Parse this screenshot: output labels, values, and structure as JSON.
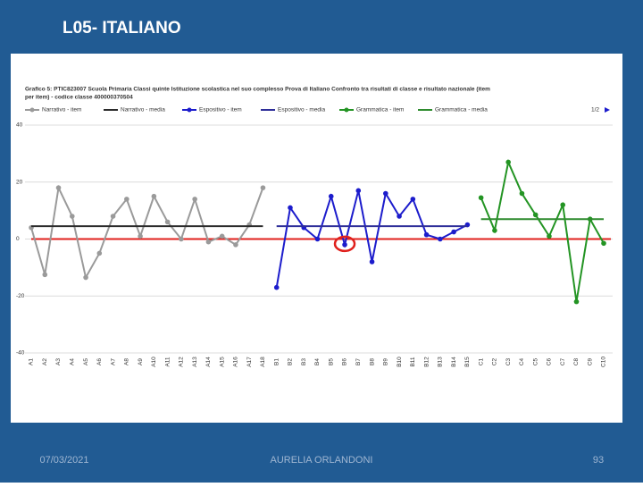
{
  "slide": {
    "title": "L05- ITALIANO",
    "date": "07/03/2021",
    "author": "AURELIA ORLANDONI",
    "page": "93"
  },
  "chart_data": {
    "type": "line",
    "title_lines": [
      "Grafico 5: PTIC823007   Scuola Primaria   Classi quinte   Istituzione scolastica nel suo complesso   Prova di Italiano   Confronto tra risultati di classe e risultato nazionale (item",
      "per item) - codice classe 400000370504"
    ],
    "legend_page": "1/2",
    "categories": [
      "A1",
      "A2",
      "A3",
      "A4",
      "A5",
      "A6",
      "A7",
      "A8",
      "A9",
      "A10",
      "A11",
      "A12",
      "A13",
      "A14",
      "A15",
      "A16",
      "A17",
      "A18",
      "B1",
      "B2",
      "B3",
      "B4",
      "B5",
      "B6",
      "B7",
      "B8",
      "B9",
      "B10",
      "B11",
      "B12",
      "B13",
      "B14",
      "B15",
      "C1",
      "C2",
      "C3",
      "C4",
      "C5",
      "C6",
      "C7",
      "C8",
      "C9",
      "C10"
    ],
    "series": [
      {
        "name": "Narrativo - item",
        "color": "#9a9a9a",
        "values": [
          4,
          -12.5,
          18,
          8,
          -13.5,
          -5,
          8,
          14,
          1,
          15,
          6,
          0,
          14,
          -1,
          1,
          -2,
          5,
          18,
          null,
          null,
          null,
          null,
          null,
          null,
          null,
          null,
          null,
          null,
          null,
          null,
          null,
          null,
          null,
          null,
          null,
          null,
          null,
          null,
          null,
          null,
          null,
          null,
          null
        ]
      },
      {
        "name": "Narrativo - media",
        "color": "#2b2b2b",
        "value": 4.5
      },
      {
        "name": "Espositivo - item",
        "color": "#1c1ccc",
        "values": [
          null,
          null,
          null,
          null,
          null,
          null,
          null,
          null,
          null,
          null,
          null,
          null,
          null,
          null,
          null,
          null,
          null,
          null,
          -17,
          11,
          4,
          0,
          15,
          -2,
          17,
          -8,
          16,
          8,
          14,
          1.5,
          0,
          2.5,
          5,
          null,
          null,
          null,
          null,
          null,
          null,
          null,
          null,
          null,
          null
        ]
      },
      {
        "name": "Espositivo - media",
        "color": "#2e2e99",
        "value": 4.5
      },
      {
        "name": "Grammatica - item",
        "color": "#239423",
        "values": [
          null,
          null,
          null,
          null,
          null,
          null,
          null,
          null,
          null,
          null,
          null,
          null,
          null,
          null,
          null,
          null,
          null,
          null,
          null,
          null,
          null,
          null,
          null,
          null,
          null,
          null,
          null,
          null,
          null,
          null,
          null,
          null,
          null,
          14.5,
          3,
          27,
          16,
          8.5,
          1,
          12,
          -22,
          7,
          -1.5
        ]
      },
      {
        "name": "Grammatica - media",
        "color": "#2e8b2e",
        "value": 7
      }
    ],
    "ylim": [
      -40,
      40
    ],
    "yticks": [
      40,
      20,
      0,
      -20,
      -40
    ],
    "grid": true
  }
}
